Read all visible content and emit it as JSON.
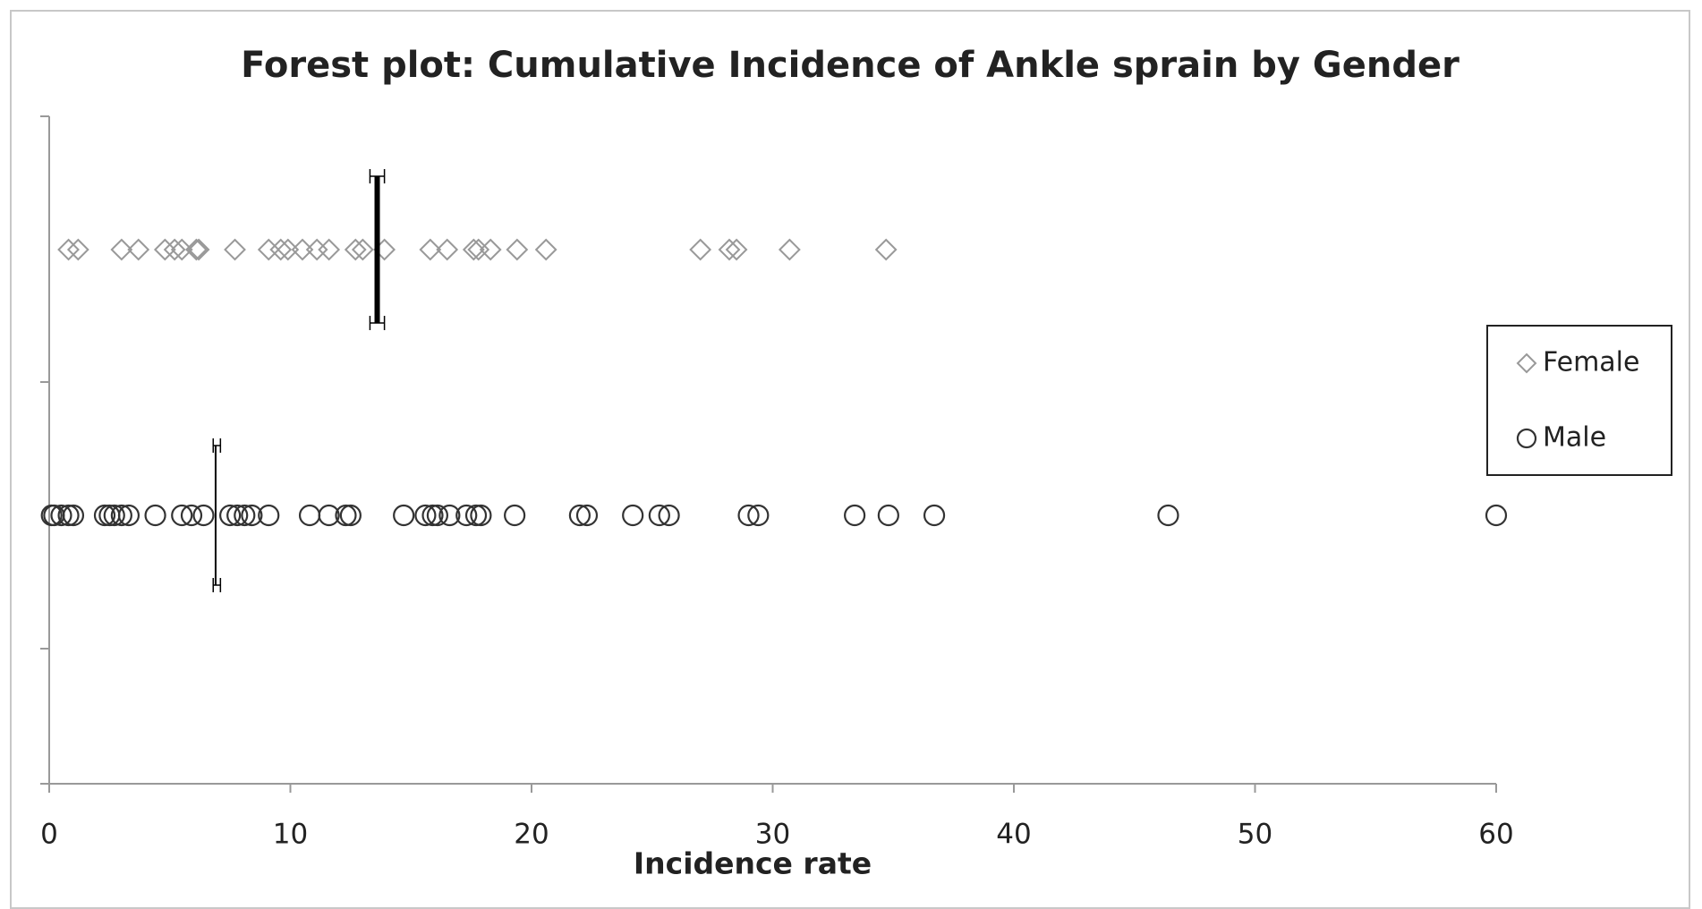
{
  "chart_data": {
    "type": "forest",
    "title": "Forest plot: Cumulative Incidence of Ankle sprain by Gender",
    "x_label": "Incidence rate",
    "xlim": [
      0,
      60
    ],
    "xticks": [
      0,
      10,
      20,
      30,
      40,
      50,
      60
    ],
    "legend": "right",
    "series": [
      {
        "name": "Female",
        "color": "#999999",
        "marker": "diamond",
        "values": [
          0.8,
          1.2,
          3.0,
          3.7,
          4.8,
          5.2,
          5.5,
          6.1,
          6.2,
          7.7,
          9.1,
          9.6,
          9.9,
          10.5,
          11.1,
          11.6,
          12.7,
          13.0,
          13.9,
          15.8,
          16.5,
          17.6,
          17.8,
          18.3,
          19.4,
          20.6,
          27.0,
          28.2,
          28.5,
          30.7,
          34.7
        ],
        "mean": 13.6,
        "ci": [
          13.3,
          13.9
        ]
      },
      {
        "name": "Male",
        "color": "#333333",
        "marker": "circle",
        "values": [
          0.1,
          0.2,
          0.5,
          0.8,
          1.0,
          2.3,
          2.5,
          2.7,
          3.0,
          3.3,
          4.4,
          5.5,
          5.9,
          6.4,
          7.5,
          7.8,
          8.1,
          8.4,
          9.1,
          10.8,
          11.6,
          12.3,
          12.5,
          14.7,
          15.6,
          15.9,
          16.1,
          16.6,
          17.3,
          17.7,
          17.9,
          19.3,
          22.0,
          22.3,
          24.2,
          25.3,
          25.7,
          29.0,
          29.4,
          33.4,
          34.8,
          36.7,
          46.4,
          60.0
        ],
        "mean": 6.9,
        "ci": [
          6.8,
          7.1
        ]
      }
    ]
  }
}
